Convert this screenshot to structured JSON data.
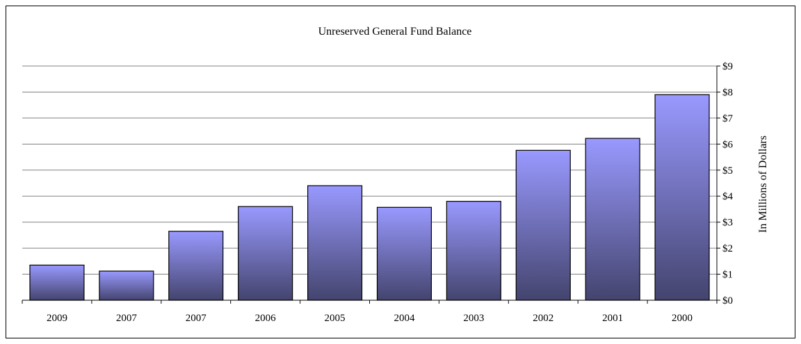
{
  "chart_data": {
    "type": "bar",
    "title": "Unreserved General Fund Balance",
    "categories": [
      "2009",
      "2007",
      "2007",
      "2006",
      "2005",
      "2004",
      "2003",
      "2002",
      "2001",
      "2000"
    ],
    "values": [
      1.35,
      1.12,
      2.65,
      3.6,
      4.4,
      3.57,
      3.8,
      5.76,
      6.22,
      7.9
    ],
    "ylabel": "In Millions of Dollars",
    "xlabel": "",
    "ylim": [
      0,
      9
    ],
    "yticks": [
      "$0",
      "$1",
      "$2",
      "$3",
      "$4",
      "$5",
      "$6",
      "$7",
      "$8",
      "$9"
    ],
    "y_axis_side": "right",
    "grid": true,
    "legend": "none",
    "colors": {
      "bar_top": "#9999ff",
      "bar_bottom": "#44446e",
      "bar_border": "#000000",
      "grid": "#808080"
    }
  }
}
